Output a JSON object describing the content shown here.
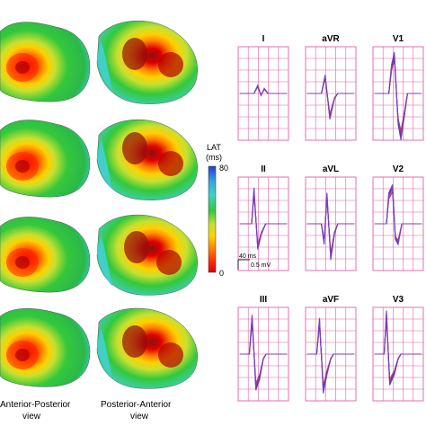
{
  "colorbar": {
    "label_line1": "LAT",
    "label_line2": "(ms)",
    "max": "80",
    "min": "0",
    "colors": [
      "#1f3fd0",
      "#35a4e0",
      "#3fd0c8",
      "#34c83c",
      "#c8e030",
      "#ffd000",
      "#ff8000",
      "#ff2a00",
      "#e00000"
    ]
  },
  "captions": {
    "left_line1": "Anterior-Posterior",
    "left_line2": "view",
    "right_line1": "Posterior-Anterior",
    "right_line2": "view"
  },
  "ecg": {
    "leads": [
      "I",
      "aVR",
      "V1",
      "II",
      "aVL",
      "V2",
      "III",
      "aVF",
      "V3"
    ],
    "scale_time": "40 ms",
    "scale_voltage": "0.5 mV",
    "trace_colors": [
      "#a0287a",
      "#e0307a",
      "#3040a0",
      "#7a40c0"
    ],
    "grid_color": "#e060a8"
  }
}
